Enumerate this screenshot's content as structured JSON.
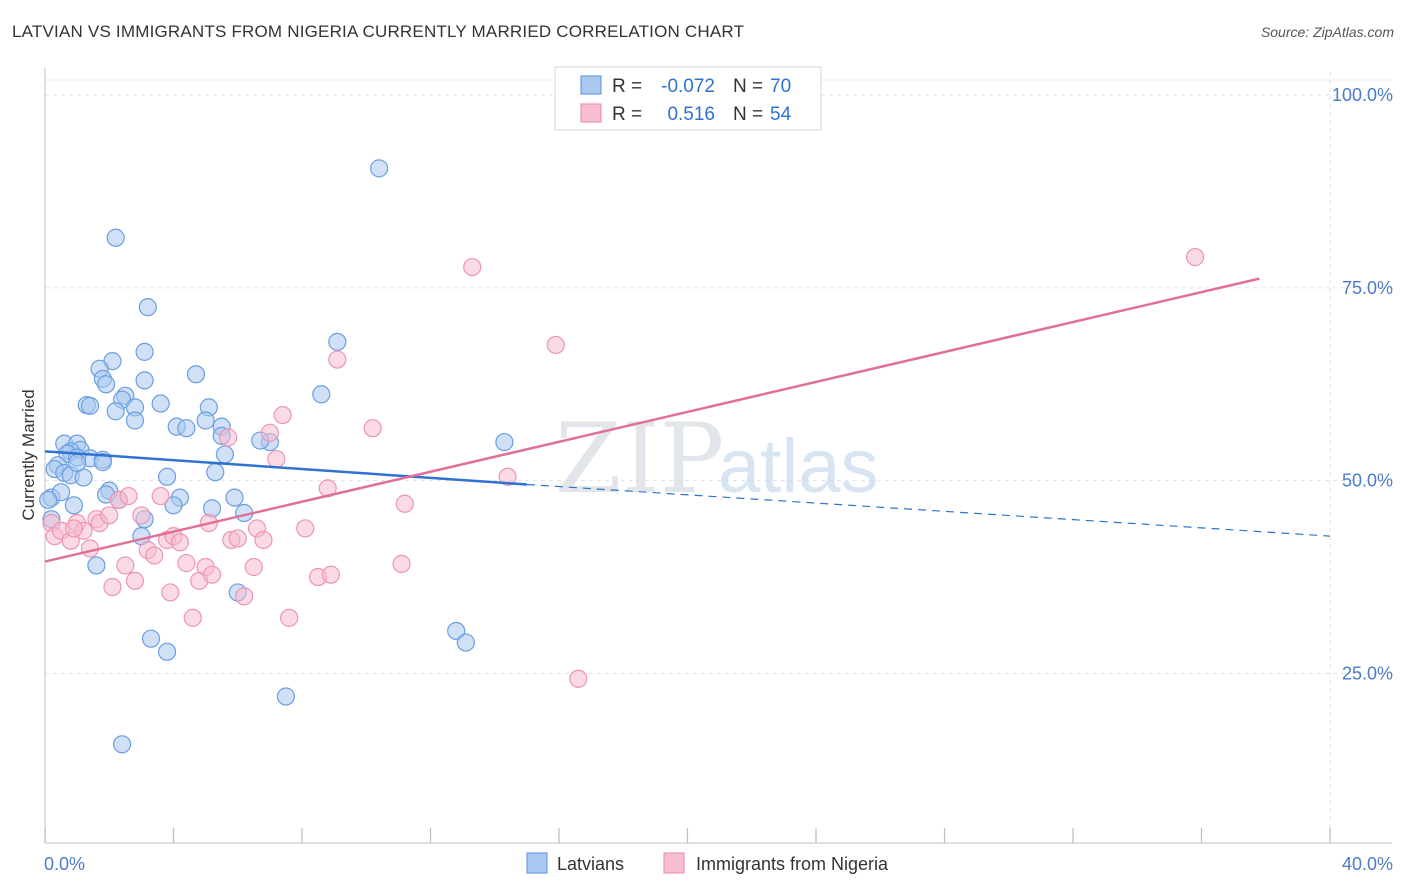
{
  "title": "LATVIAN VS IMMIGRANTS FROM NIGERIA CURRENTLY MARRIED CORRELATION CHART",
  "source": "Source: ZipAtlas.com",
  "watermark": {
    "zip": "ZIP",
    "atlas": "atlas"
  },
  "colors": {
    "blue": "#2f72d0",
    "blue_fill": "#a9c8f0",
    "blue_stroke": "#6a9ee0",
    "pink": "#e0709a",
    "pink_fill": "#f6bcd0",
    "pink_stroke": "#ee94b4",
    "grid": "#dde3ea",
    "axis_text": "#4a7cc9"
  },
  "legend": {
    "row1": {
      "r_label": "R = ",
      "r_value": "-0.072",
      "n_label": "N = ",
      "n_value": "70"
    },
    "row2": {
      "r_label": "R = ",
      "r_value": "0.516",
      "n_label": "N = ",
      "n_value": "54"
    }
  },
  "chart_data": {
    "type": "scatter",
    "title": "LATVIAN VS IMMIGRANTS FROM NIGERIA CURRENTLY MARRIED CORRELATION CHART",
    "xlabel": "",
    "ylabel": "Currently Married",
    "xlim": [
      0,
      40
    ],
    "ylim": [
      3,
      103
    ],
    "x_tick_labels": [
      "0.0%",
      "40.0%"
    ],
    "y_ticks": [
      25,
      50,
      75,
      100
    ],
    "y_tick_labels": [
      "25.0%",
      "50.0%",
      "75.0%",
      "100.0%"
    ],
    "grid": true,
    "legend_position": "top-center",
    "series": [
      {
        "name": "Latvians",
        "color": "#2f72d0",
        "points": [
          [
            10.4,
            90.5
          ],
          [
            2.2,
            81.5
          ],
          [
            3.2,
            72.5
          ],
          [
            9.1,
            68.0
          ],
          [
            3.1,
            66.7
          ],
          [
            2.1,
            65.5
          ],
          [
            1.7,
            64.5
          ],
          [
            4.7,
            63.8
          ],
          [
            3.1,
            63.0
          ],
          [
            1.8,
            63.2
          ],
          [
            1.9,
            62.5
          ],
          [
            2.5,
            61.0
          ],
          [
            8.6,
            61.2
          ],
          [
            1.3,
            59.8
          ],
          [
            2.4,
            60.5
          ],
          [
            3.6,
            60.0
          ],
          [
            5.1,
            59.5
          ],
          [
            2.2,
            59.0
          ],
          [
            2.8,
            59.5
          ],
          [
            1.4,
            59.7
          ],
          [
            2.8,
            57.8
          ],
          [
            5.0,
            57.8
          ],
          [
            4.1,
            57.0
          ],
          [
            4.4,
            56.8
          ],
          [
            5.5,
            57.0
          ],
          [
            5.5,
            55.8
          ],
          [
            7.0,
            55.0
          ],
          [
            6.7,
            55.2
          ],
          [
            14.3,
            55.0
          ],
          [
            0.6,
            54.8
          ],
          [
            1.0,
            54.8
          ],
          [
            1.1,
            54.0
          ],
          [
            0.8,
            53.8
          ],
          [
            0.7,
            53.5
          ],
          [
            1.0,
            53.0
          ],
          [
            1.4,
            52.9
          ],
          [
            1.8,
            52.7
          ],
          [
            0.4,
            52.0
          ],
          [
            0.3,
            51.5
          ],
          [
            0.6,
            51.0
          ],
          [
            0.8,
            50.7
          ],
          [
            1.2,
            50.4
          ],
          [
            1.8,
            52.4
          ],
          [
            5.6,
            53.4
          ],
          [
            5.3,
            51.1
          ],
          [
            3.8,
            50.5
          ],
          [
            2.0,
            48.7
          ],
          [
            1.9,
            48.2
          ],
          [
            2.3,
            47.5
          ],
          [
            4.2,
            47.8
          ],
          [
            5.9,
            47.8
          ],
          [
            0.2,
            47.8
          ],
          [
            0.9,
            46.8
          ],
          [
            5.2,
            46.4
          ],
          [
            4.0,
            46.8
          ],
          [
            6.2,
            45.8
          ],
          [
            3.1,
            45.0
          ],
          [
            3.0,
            42.8
          ],
          [
            1.6,
            39.0
          ],
          [
            6.0,
            35.5
          ],
          [
            12.8,
            30.5
          ],
          [
            13.1,
            29.0
          ],
          [
            3.3,
            29.5
          ],
          [
            3.8,
            27.8
          ],
          [
            7.5,
            22.0
          ],
          [
            2.4,
            15.8
          ],
          [
            1.0,
            52.3
          ],
          [
            0.5,
            48.5
          ],
          [
            0.1,
            47.5
          ],
          [
            0.2,
            45.0
          ]
        ],
        "trend": {
          "x0": 0.0,
          "y0": 53.8,
          "x1": 15.0,
          "y1": 49.5,
          "dashed_to_x": 40.0,
          "dashed_to_y": 42.8
        }
      },
      {
        "name": "Immigrants from Nigeria",
        "color": "#e0709a",
        "points": [
          [
            0.2,
            44.5
          ],
          [
            0.3,
            42.8
          ],
          [
            0.5,
            43.5
          ],
          [
            0.8,
            42.2
          ],
          [
            1.0,
            44.5
          ],
          [
            1.2,
            43.5
          ],
          [
            1.4,
            41.2
          ],
          [
            1.6,
            45.0
          ],
          [
            1.7,
            44.5
          ],
          [
            2.0,
            45.5
          ],
          [
            2.3,
            47.5
          ],
          [
            2.6,
            48.0
          ],
          [
            2.5,
            39.0
          ],
          [
            2.8,
            37.0
          ],
          [
            2.1,
            36.2
          ],
          [
            3.0,
            45.5
          ],
          [
            3.2,
            41.0
          ],
          [
            3.4,
            40.3
          ],
          [
            3.6,
            48.0
          ],
          [
            3.8,
            42.3
          ],
          [
            4.0,
            42.8
          ],
          [
            4.2,
            42.0
          ],
          [
            3.9,
            35.5
          ],
          [
            4.4,
            39.3
          ],
          [
            4.8,
            37.0
          ],
          [
            5.0,
            38.8
          ],
          [
            5.2,
            37.8
          ],
          [
            4.6,
            32.2
          ],
          [
            5.1,
            44.5
          ],
          [
            5.8,
            42.3
          ],
          [
            6.0,
            42.5
          ],
          [
            6.2,
            35.0
          ],
          [
            6.5,
            38.8
          ],
          [
            6.6,
            43.8
          ],
          [
            6.8,
            42.3
          ],
          [
            7.0,
            56.2
          ],
          [
            7.2,
            52.8
          ],
          [
            7.4,
            58.5
          ],
          [
            7.6,
            32.2
          ],
          [
            8.1,
            43.8
          ],
          [
            8.5,
            37.5
          ],
          [
            8.8,
            49.0
          ],
          [
            8.9,
            37.8
          ],
          [
            9.1,
            65.7
          ],
          [
            10.2,
            56.8
          ],
          [
            11.1,
            39.2
          ],
          [
            11.2,
            47.0
          ],
          [
            13.3,
            77.7
          ],
          [
            14.4,
            50.5
          ],
          [
            15.9,
            67.6
          ],
          [
            16.6,
            24.3
          ],
          [
            35.8,
            79.0
          ],
          [
            5.7,
            55.6
          ],
          [
            0.9,
            43.8
          ]
        ],
        "trend": {
          "x0": 0.0,
          "y0": 39.5,
          "x1": 37.8,
          "y1": 76.2
        }
      }
    ]
  },
  "bottom_legend": {
    "item1": "Latvians",
    "item2": "Immigrants from Nigeria"
  },
  "axis": {
    "x_left": "0.0%",
    "x_right": "40.0%",
    "y_label": "Currently Married"
  }
}
